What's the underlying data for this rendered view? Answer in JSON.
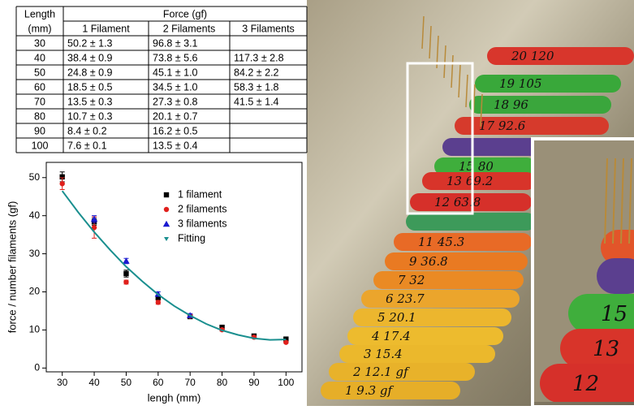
{
  "table": {
    "header": {
      "length": "Length",
      "unit": "(mm)",
      "force": "Force (gf)",
      "columns": [
        "1 Filament",
        "2 Filaments",
        "3 Filaments"
      ]
    },
    "rows": [
      [
        "30",
        "50.2 ± 1.3",
        "96.8 ± 3.1"
      ],
      [
        "40",
        "38.4 ± 0.9",
        "73.8  ± 5.6",
        "117.3 ± 2.8"
      ],
      [
        "50",
        "24.8 ± 0.9",
        "45.1  ± 1.0",
        "84.2 ± 2.2"
      ],
      [
        "60",
        "18.5 ± 0.5",
        "34.5  ± 1.0",
        "58.3  ± 1.8"
      ],
      [
        "70",
        "13.5 ± 0.3",
        "27.3  ± 0.8",
        "41.5   ± 1.4"
      ],
      [
        "80",
        "10.7 ± 0.3",
        "20.1  ± 0.7"
      ],
      [
        "90",
        "8.4  ± 0.2",
        "16.2  ± 0.5"
      ],
      [
        "100",
        "7.6  ± 0.1",
        "13.5  ± 0.4"
      ]
    ]
  },
  "chart_data": {
    "type": "scatter",
    "xlabel": "lengh (mm)",
    "ylabel": "force / number filaments (gf)",
    "xlim": [
      25,
      105
    ],
    "xticks": [
      30,
      40,
      50,
      60,
      70,
      80,
      90,
      100
    ],
    "ylim": [
      -1,
      54
    ],
    "yticks": [
      0,
      10,
      20,
      30,
      40,
      50
    ],
    "legend": "upper right",
    "series": [
      {
        "name": "1 filament",
        "color": "#000000",
        "marker": "square",
        "x": [
          30,
          40,
          50,
          60,
          70,
          80,
          90,
          100
        ],
        "values": [
          50.2,
          38.4,
          24.8,
          18.5,
          13.5,
          10.7,
          8.4,
          7.6
        ],
        "errors": [
          1.3,
          0.9,
          0.9,
          0.5,
          0.3,
          0.3,
          0.2,
          0.1
        ]
      },
      {
        "name": "2 filaments",
        "color": "#e0201c",
        "marker": "circle",
        "x": [
          30,
          40,
          50,
          60,
          70,
          80,
          90,
          100
        ],
        "values": [
          48.4,
          36.9,
          22.55,
          17.25,
          13.65,
          10.05,
          8.1,
          6.75
        ],
        "errors": [
          1.55,
          2.8,
          0.5,
          0.5,
          0.4,
          0.35,
          0.25,
          0.2
        ]
      },
      {
        "name": "3 filaments",
        "color": "#1a1ad0",
        "marker": "triangle",
        "x": [
          30,
          40,
          50,
          60,
          70,
          80,
          90,
          100
        ],
        "values": [
          null,
          39.1,
          28.1,
          19.4,
          13.8,
          null,
          null,
          null
        ],
        "errors": [
          null,
          0.9,
          0.7,
          0.6,
          0.5,
          null,
          null,
          null
        ]
      },
      {
        "name": "Fitting",
        "color": "#1a8f8f",
        "marker": "line",
        "x": [
          30,
          35,
          40,
          45,
          50,
          55,
          60,
          65,
          70,
          75,
          80,
          85,
          90,
          95,
          100
        ],
        "values": [
          46.5,
          40.9,
          35.7,
          31.0,
          26.6,
          22.8,
          19.3,
          16.3,
          13.8,
          11.6,
          9.9,
          8.7,
          7.8,
          7.4,
          7.5
        ]
      }
    ]
  },
  "photo": {
    "stick_labels": [
      "20 120",
      "19 105",
      "18 96",
      "17 92.6",
      "15 80",
      "13 69.2",
      "12 63.8",
      "11 45.3",
      "9 36.8",
      "7 32",
      "6 23.7",
      "5 20.1",
      "4 17.4",
      "3 15.4",
      "2 12.1 gf",
      "1 9.3 gf"
    ],
    "inset_labels": [
      "15",
      "13",
      "12"
    ]
  }
}
